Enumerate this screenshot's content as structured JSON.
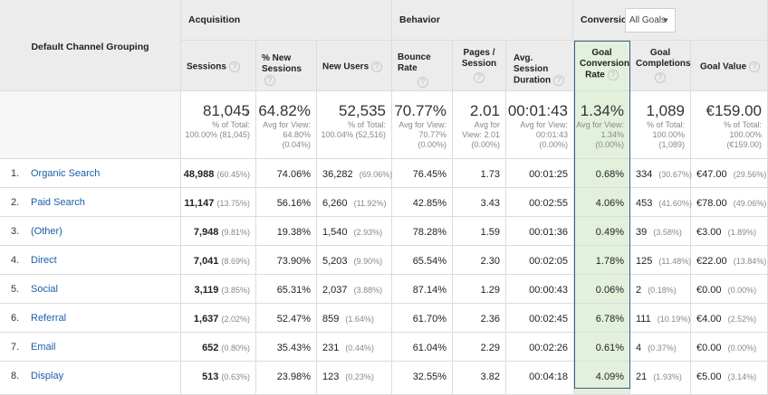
{
  "header": {
    "dimension": "Default Channel Grouping",
    "groups": {
      "acquisition": "Acquisition",
      "behavior": "Behavior",
      "conversions": "Conversions"
    },
    "goal_select": "All Goals",
    "columns": {
      "sessions": "Sessions",
      "new_sessions": [
        "% New",
        "Sessions"
      ],
      "new_users": "New Users",
      "bounce_rate": "Bounce Rate",
      "pages_session": [
        "Pages /",
        "Session"
      ],
      "avg_duration": [
        "Avg. Session",
        "Duration"
      ],
      "goal_conv_rate": [
        "Goal",
        "Conversion",
        "Rate"
      ],
      "goal_completions": [
        "Goal",
        "Completions"
      ],
      "goal_value": "Goal Value"
    }
  },
  "totals": {
    "sessions": {
      "value": "81,045",
      "sub": [
        "% of Total:",
        "100.00% (81,045)"
      ]
    },
    "new_sessions": {
      "value": "64.82%",
      "sub": [
        "Avg for View:",
        "64.80%",
        "(0.04%)"
      ]
    },
    "new_users": {
      "value": "52,535",
      "sub": [
        "% of Total:",
        "100.04% (52,516)"
      ]
    },
    "bounce_rate": {
      "value": "70.77%",
      "sub": [
        "Avg for View:",
        "70.77%",
        "(0.00%)"
      ]
    },
    "pages_session": {
      "value": "2.01",
      "sub": [
        "Avg for",
        "View: 2.01",
        "(0.00%)"
      ]
    },
    "avg_duration": {
      "value": "00:01:43",
      "sub": [
        "Avg for View:",
        "00:01:43",
        "(0.00%)"
      ]
    },
    "goal_conv_rate": {
      "value": "1.34%",
      "sub": [
        "Avg for View:",
        "1.34%",
        "(0.00%)"
      ]
    },
    "goal_completions": {
      "value": "1,089",
      "sub": [
        "% of Total:",
        "100.00%",
        "(1,089)"
      ]
    },
    "goal_value": {
      "value": "€159.00",
      "sub": [
        "% of Total:",
        "100.00%",
        "(€159.00)"
      ]
    }
  },
  "rows": [
    {
      "rank": "1.",
      "channel": "Organic Search",
      "sessions": "48,988",
      "sessions_pct": "(60.45%)",
      "new_sessions": "74.06%",
      "new_users": "36,282",
      "new_users_pct": "(69.06%)",
      "bounce": "76.45%",
      "pages": "1.73",
      "duration": "00:01:25",
      "conv": "0.68%",
      "completions": "334",
      "completions_pct": "(30.67%)",
      "value": "€47.00",
      "value_pct": "(29.56%)"
    },
    {
      "rank": "2.",
      "channel": "Paid Search",
      "sessions": "11,147",
      "sessions_pct": "(13.75%)",
      "new_sessions": "56.16%",
      "new_users": "6,260",
      "new_users_pct": "(11.92%)",
      "bounce": "42.85%",
      "pages": "3.43",
      "duration": "00:02:55",
      "conv": "4.06%",
      "completions": "453",
      "completions_pct": "(41.60%)",
      "value": "€78.00",
      "value_pct": "(49.06%)"
    },
    {
      "rank": "3.",
      "channel": "(Other)",
      "sessions": "7,948",
      "sessions_pct": "(9.81%)",
      "new_sessions": "19.38%",
      "new_users": "1,540",
      "new_users_pct": "(2.93%)",
      "bounce": "78.28%",
      "pages": "1.59",
      "duration": "00:01:36",
      "conv": "0.49%",
      "completions": "39",
      "completions_pct": "(3.58%)",
      "value": "€3.00",
      "value_pct": "(1.89%)"
    },
    {
      "rank": "4.",
      "channel": "Direct",
      "sessions": "7,041",
      "sessions_pct": "(8.69%)",
      "new_sessions": "73.90%",
      "new_users": "5,203",
      "new_users_pct": "(9.90%)",
      "bounce": "65.54%",
      "pages": "2.30",
      "duration": "00:02:05",
      "conv": "1.78%",
      "completions": "125",
      "completions_pct": "(11.48%)",
      "value": "€22.00",
      "value_pct": "(13.84%)"
    },
    {
      "rank": "5.",
      "channel": "Social",
      "sessions": "3,119",
      "sessions_pct": "(3.85%)",
      "new_sessions": "65.31%",
      "new_users": "2,037",
      "new_users_pct": "(3.88%)",
      "bounce": "87.14%",
      "pages": "1.29",
      "duration": "00:00:43",
      "conv": "0.06%",
      "completions": "2",
      "completions_pct": "(0.18%)",
      "value": "€0.00",
      "value_pct": "(0.00%)"
    },
    {
      "rank": "6.",
      "channel": "Referral",
      "sessions": "1,637",
      "sessions_pct": "(2.02%)",
      "new_sessions": "52.47%",
      "new_users": "859",
      "new_users_pct": "(1.64%)",
      "bounce": "61.70%",
      "pages": "2.36",
      "duration": "00:02:45",
      "conv": "6.78%",
      "completions": "111",
      "completions_pct": "(10.19%)",
      "value": "€4.00",
      "value_pct": "(2.52%)"
    },
    {
      "rank": "7.",
      "channel": "Email",
      "sessions": "652",
      "sessions_pct": "(0.80%)",
      "new_sessions": "35.43%",
      "new_users": "231",
      "new_users_pct": "(0.44%)",
      "bounce": "61.04%",
      "pages": "2.29",
      "duration": "00:02:26",
      "conv": "0.61%",
      "completions": "4",
      "completions_pct": "(0.37%)",
      "value": "€0.00",
      "value_pct": "(0.00%)"
    },
    {
      "rank": "8.",
      "channel": "Display",
      "sessions": "513",
      "sessions_pct": "(0.63%)",
      "new_sessions": "23.98%",
      "new_users": "123",
      "new_users_pct": "(0.23%)",
      "bounce": "32.55%",
      "pages": "3.82",
      "duration": "00:04:18",
      "conv": "4.09%",
      "completions": "21",
      "completions_pct": "(1.93%)",
      "value": "€5.00",
      "value_pct": "(3.14%)"
    }
  ]
}
